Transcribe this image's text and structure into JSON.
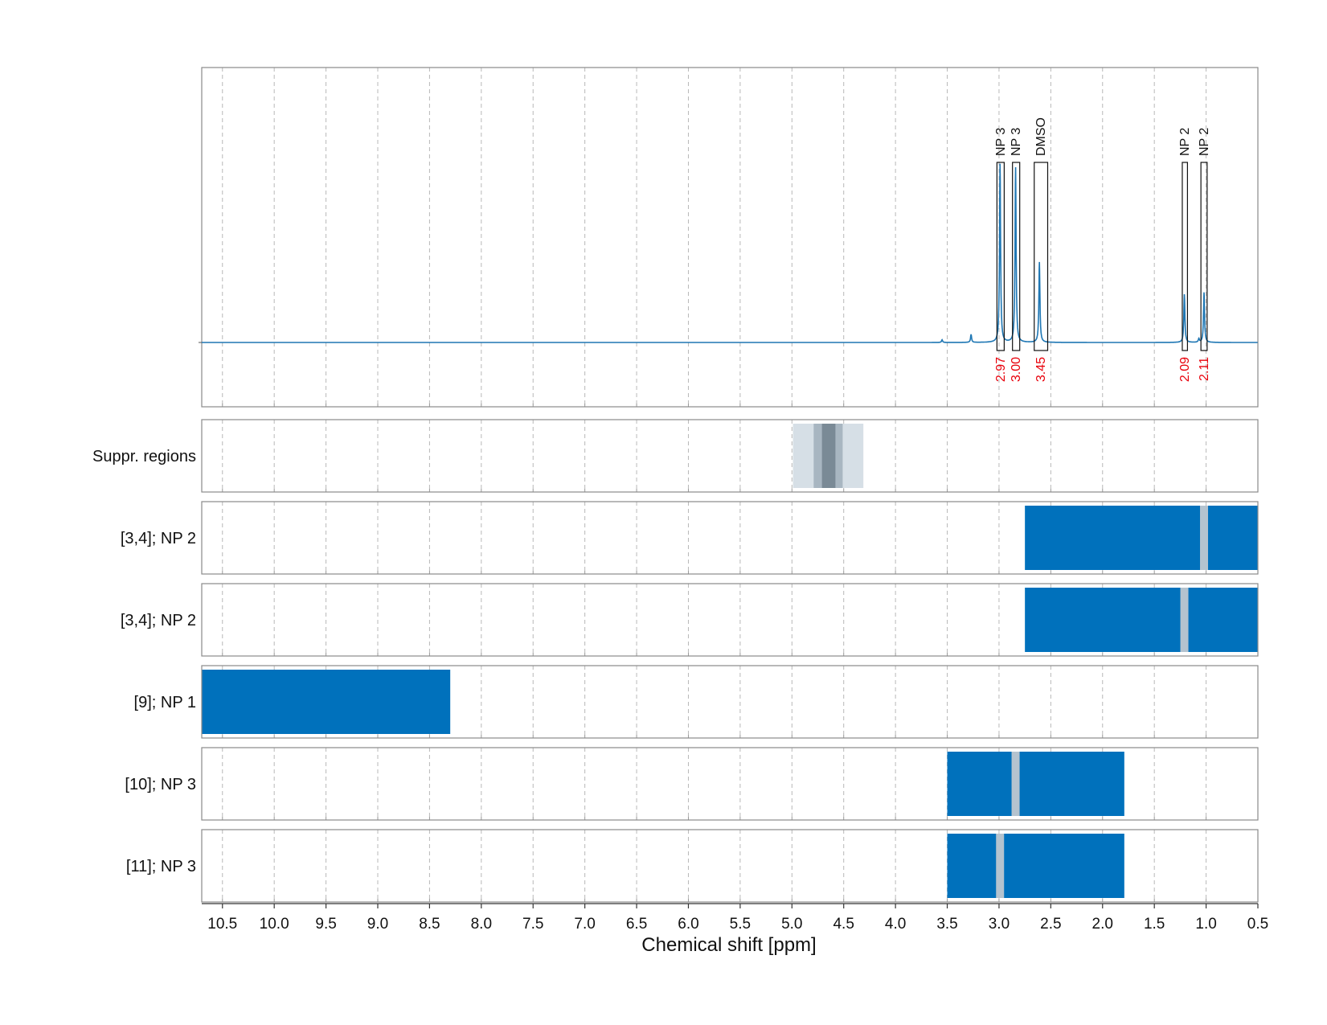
{
  "chart_data": {
    "type": "spectrum_with_region_tracks",
    "xlabel": "Chemical shift [ppm]",
    "xlim": [
      10.7,
      0.5
    ],
    "x_reversed": true,
    "x_ticks": [
      "10.5",
      "10.0",
      "9.5",
      "9.0",
      "8.5",
      "8.0",
      "7.5",
      "7.0",
      "6.5",
      "6.0",
      "5.5",
      "5.0",
      "4.5",
      "4.0",
      "3.5",
      "3.0",
      "2.5",
      "2.0",
      "1.5",
      "1.0",
      "0.5"
    ],
    "x_tick_values": [
      10.5,
      10.0,
      9.5,
      9.0,
      8.5,
      8.0,
      7.5,
      7.0,
      6.5,
      6.0,
      5.5,
      5.0,
      4.5,
      4.0,
      3.5,
      3.0,
      2.5,
      2.0,
      1.5,
      1.0,
      0.5
    ],
    "grid": "vertical-dashed",
    "colors": {
      "spectrum": "#1f77b4",
      "region": "#0071bc",
      "gap": "#b4c3cf",
      "label_value": "#e8000b",
      "suppr_outer": "#d6dfe6",
      "suppr_mid": "#a8b6c1",
      "suppr_core": "#7a8a96",
      "frame": "#8a8a8a"
    },
    "spectrum": {
      "baseline": 0.0,
      "peaks": [
        {
          "x": 3.55,
          "height": 0.015
        },
        {
          "x": 3.27,
          "height": 0.045
        },
        {
          "x": 2.99,
          "height": 1.0
        },
        {
          "x": 2.84,
          "height": 0.98
        },
        {
          "x": 2.61,
          "height": 0.45
        },
        {
          "x": 1.21,
          "height": 0.27
        },
        {
          "x": 1.07,
          "height": 0.02
        },
        {
          "x": 1.02,
          "height": 0.28
        }
      ],
      "annotations": [
        {
          "label": "NP 3",
          "value": "2.97",
          "x_from": 3.02,
          "x_to": 2.95
        },
        {
          "label": "NP 3",
          "value": "3.00",
          "x_from": 2.87,
          "x_to": 2.8
        },
        {
          "label": "DMSO",
          "value": "3.45",
          "x_from": 2.66,
          "x_to": 2.53
        },
        {
          "label": "NP 2",
          "value": "2.09",
          "x_from": 1.23,
          "x_to": 1.18
        },
        {
          "label": "NP 2",
          "value": "2.11",
          "x_from": 1.05,
          "x_to": 0.99
        }
      ]
    },
    "suppr_track": {
      "label": "Suppr. regions",
      "bands": [
        {
          "from": 4.99,
          "to": 4.31,
          "level": "outer"
        },
        {
          "from": 4.79,
          "to": 4.51,
          "level": "mid"
        },
        {
          "from": 4.71,
          "to": 4.58,
          "level": "core"
        }
      ]
    },
    "tracks": [
      {
        "label": "[3,4]; NP 2",
        "region": [
          2.75,
          0.5
        ],
        "gap": 1.02
      },
      {
        "label": "[3,4]; NP 2",
        "region": [
          2.75,
          0.5
        ],
        "gap": 1.21
      },
      {
        "label": "[9]; NP 1",
        "region": [
          10.7,
          8.3
        ],
        "gap": null
      },
      {
        "label": "[10]; NP 3",
        "region": [
          3.5,
          1.79
        ],
        "gap": 2.84
      },
      {
        "label": "[11]; NP 3",
        "region": [
          3.5,
          1.79
        ],
        "gap": 2.99
      }
    ]
  }
}
